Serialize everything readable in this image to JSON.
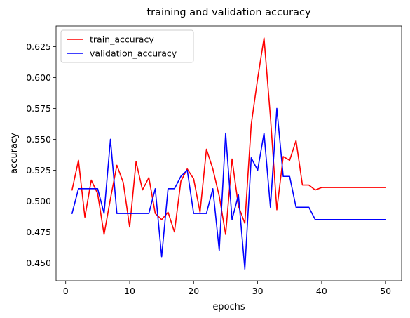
{
  "chart_data": {
    "type": "line",
    "title": "training and validation accuracy",
    "xlabel": "epochs",
    "ylabel": "accuracy",
    "xlim": [
      -1.5,
      52.5
    ],
    "ylim": [
      0.4355,
      0.6417
    ],
    "xticks": [
      0,
      10,
      20,
      30,
      40,
      50
    ],
    "yticks": [
      0.45,
      0.475,
      0.5,
      0.525,
      0.55,
      0.575,
      0.6,
      0.625
    ],
    "xtick_labels": [
      "0",
      "10",
      "20",
      "30",
      "40",
      "50"
    ],
    "ytick_labels": [
      "0.450",
      "0.475",
      "0.500",
      "0.525",
      "0.550",
      "0.575",
      "0.600",
      "0.625"
    ],
    "grid": false,
    "legend_position": "top-left",
    "x": [
      1,
      2,
      3,
      4,
      5,
      6,
      7,
      8,
      9,
      10,
      11,
      12,
      13,
      14,
      15,
      16,
      17,
      18,
      19,
      20,
      21,
      22,
      23,
      24,
      25,
      26,
      27,
      28,
      29,
      30,
      31,
      32,
      33,
      34,
      35,
      36,
      37,
      38,
      39,
      40,
      41,
      42,
      43,
      44,
      45,
      46,
      47,
      48,
      49,
      50
    ],
    "series": [
      {
        "name": "train_accuracy",
        "color": "#ff0000",
        "values": [
          0.509,
          0.533,
          0.487,
          0.517,
          0.506,
          0.473,
          0.502,
          0.529,
          0.515,
          0.479,
          0.532,
          0.509,
          0.519,
          0.49,
          0.485,
          0.491,
          0.475,
          0.516,
          0.526,
          0.518,
          0.491,
          0.542,
          0.526,
          0.504,
          0.473,
          0.534,
          0.496,
          0.482,
          0.562,
          0.599,
          0.632,
          0.568,
          0.493,
          0.536,
          0.533,
          0.549,
          0.513,
          0.513,
          0.509,
          0.511,
          0.511,
          0.511,
          0.511,
          0.511,
          0.511,
          0.511,
          0.511,
          0.511,
          0.511,
          0.511
        ]
      },
      {
        "name": "validation_accuracy",
        "color": "#0000ff",
        "values": [
          0.49,
          0.51,
          0.51,
          0.51,
          0.51,
          0.49,
          0.55,
          0.49,
          0.49,
          0.49,
          0.49,
          0.49,
          0.49,
          0.51,
          0.455,
          0.51,
          0.51,
          0.52,
          0.525,
          0.49,
          0.49,
          0.49,
          0.51,
          0.46,
          0.555,
          0.485,
          0.505,
          0.445,
          0.535,
          0.525,
          0.555,
          0.495,
          0.575,
          0.52,
          0.52,
          0.495,
          0.495,
          0.495,
          0.485,
          0.485,
          0.485,
          0.485,
          0.485,
          0.485,
          0.485,
          0.485,
          0.485,
          0.485,
          0.485,
          0.485
        ]
      }
    ]
  }
}
